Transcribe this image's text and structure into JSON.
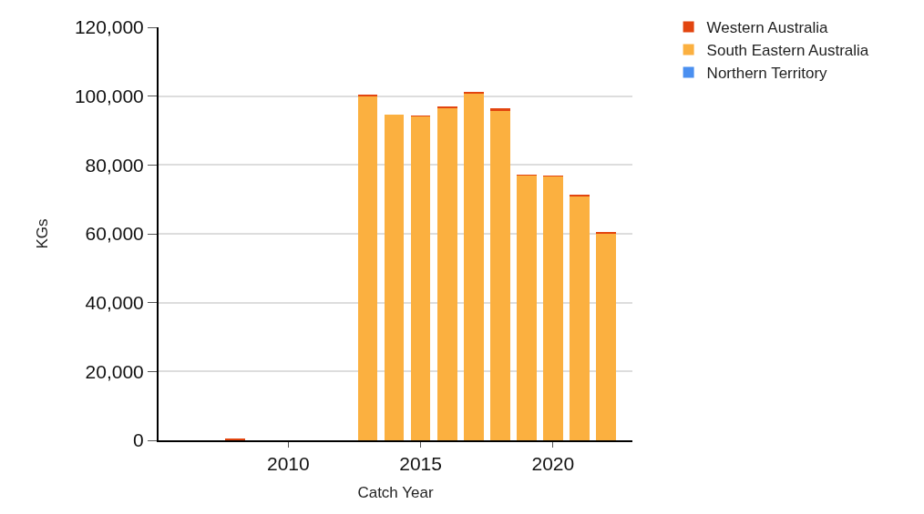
{
  "chart_data": {
    "type": "bar",
    "stacked": true,
    "xlabel": "Catch Year",
    "ylabel": "KGs",
    "x": [
      2008,
      2013,
      2014,
      2015,
      2016,
      2017,
      2018,
      2019,
      2020,
      2021,
      2022
    ],
    "series": [
      {
        "name": "Northern Territory",
        "color": "#4a8ff0",
        "values": [
          0,
          0,
          0,
          0,
          0,
          0,
          0,
          0,
          0,
          0,
          0
        ]
      },
      {
        "name": "South Eastern Australia",
        "color": "#fbb040",
        "values": [
          0,
          100000,
          94500,
          94100,
          96700,
          100800,
          95900,
          77000,
          76700,
          70900,
          60200
        ]
      },
      {
        "name": "Western Australia",
        "color": "#e2450f",
        "values": [
          500,
          300,
          0,
          200,
          200,
          200,
          500,
          100,
          200,
          300,
          300
        ]
      }
    ],
    "xlim": [
      2005.1,
      2023
    ],
    "xticks": [
      2010,
      2015,
      2020
    ],
    "ylim": [
      0,
      120000
    ],
    "yticks": [
      {
        "value": 0,
        "label": "0"
      },
      {
        "value": 20000,
        "label": "20,000"
      },
      {
        "value": 40000,
        "label": "40,000"
      },
      {
        "value": 60000,
        "label": "60,000"
      },
      {
        "value": 80000,
        "label": "80,000"
      },
      {
        "value": 100000,
        "label": "100,000"
      },
      {
        "value": 120000,
        "label": "120,000"
      }
    ],
    "grid": "y",
    "legend": "top right"
  }
}
